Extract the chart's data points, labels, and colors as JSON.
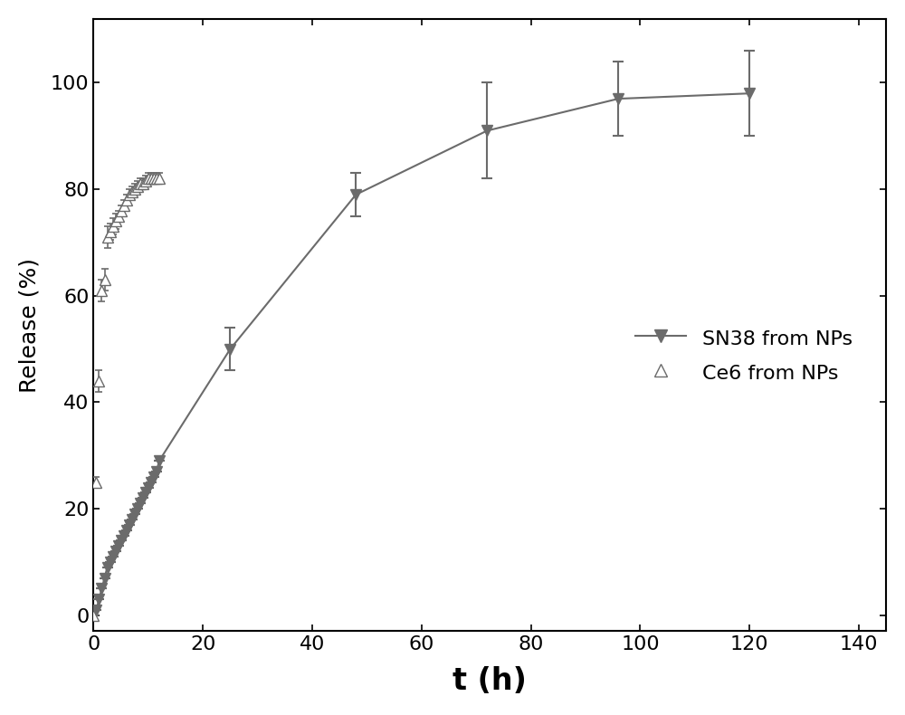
{
  "sn38_x": [
    0,
    0.5,
    1,
    1.5,
    2,
    2.5,
    3,
    3.5,
    4,
    4.5,
    5,
    5.5,
    6,
    6.5,
    7,
    7.5,
    8,
    8.5,
    9,
    9.5,
    10,
    10.5,
    11,
    11.5,
    12,
    25,
    48,
    72,
    96,
    120
  ],
  "sn38_y": [
    0,
    1,
    3,
    5,
    7,
    9,
    10,
    11,
    12,
    13,
    14,
    15,
    16,
    17,
    18,
    19,
    20,
    21,
    22,
    23,
    24,
    25,
    26,
    27,
    29,
    50,
    79,
    91,
    97,
    98
  ],
  "sn38_yerr": [
    0,
    0,
    0,
    0,
    0,
    0,
    0,
    0,
    0,
    0,
    0,
    0,
    0,
    0,
    0,
    0,
    0,
    0,
    0,
    0,
    0,
    0,
    0,
    0,
    0,
    4,
    4,
    9,
    7,
    8
  ],
  "ce6_x": [
    0,
    0.5,
    1,
    1.5,
    2,
    2.5,
    3,
    3.5,
    4,
    4.5,
    5,
    5.5,
    6,
    6.5,
    7,
    7.5,
    8,
    8.5,
    9,
    9.5,
    10,
    10.5,
    11,
    11.5,
    12
  ],
  "ce6_y": [
    0,
    25,
    44,
    61,
    63,
    71,
    72,
    73,
    74,
    75,
    76,
    77,
    78,
    79,
    79.5,
    80,
    80.5,
    81,
    81,
    81.5,
    82,
    82,
    82,
    82,
    82
  ],
  "ce6_yerr": [
    0,
    1,
    2,
    2,
    2,
    2,
    1.5,
    1.5,
    1.5,
    1,
    1,
    1,
    1,
    1,
    1,
    1,
    1,
    1,
    1,
    1,
    1,
    1,
    1,
    1,
    1
  ],
  "color": "#6b6b6b",
  "xlabel": "t (h)",
  "ylabel": "Release (%)",
  "xlim": [
    0,
    145
  ],
  "ylim": [
    -3,
    112
  ],
  "xticks": [
    0,
    20,
    40,
    60,
    80,
    100,
    120,
    140
  ],
  "yticks": [
    0,
    20,
    40,
    60,
    80,
    100
  ],
  "legend_labels": [
    "SN38 from NPs",
    "Ce6 from NPs"
  ],
  "xlabel_fontsize": 24,
  "ylabel_fontsize": 18,
  "tick_fontsize": 16,
  "legend_fontsize": 16
}
